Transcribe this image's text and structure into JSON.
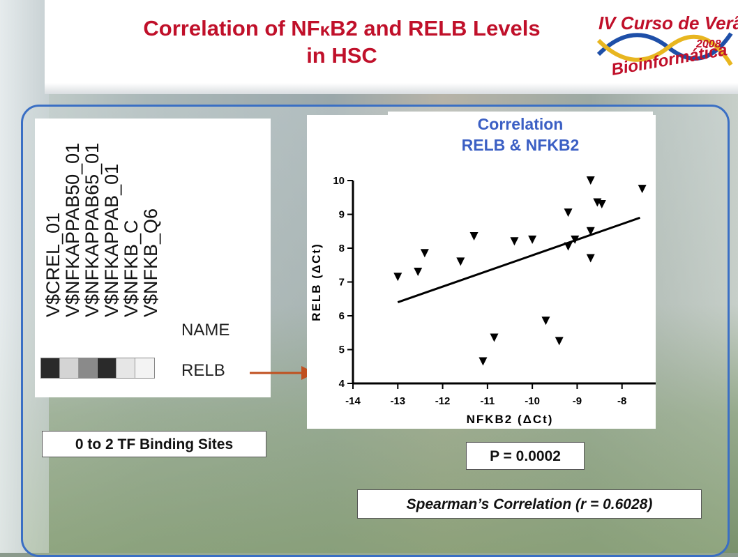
{
  "slide": {
    "title_part1": "Correlation of NF",
    "title_kappa": "κ",
    "title_part2": "B2 and RELB Levels",
    "title_line2": "in HSC",
    "logo_line1": "IV Curso de Verão",
    "logo_year": "2008",
    "logo_line2": "Bioinformática"
  },
  "matrix": {
    "tf_names": [
      "V$CREL_01",
      "V$NFKAPPAB50_01",
      "V$NFKAPPAB65_01",
      "V$NFKAPPAB_01",
      "V$NFKB_C",
      "V$NFKB_Q6"
    ],
    "header_label": "NAME",
    "row_label": "RELB",
    "cell_colors": [
      "#2a2a2a",
      "#d4d4d4",
      "#8a8a8a",
      "#2a2a2a",
      "#e6e6e6",
      "#f3f3f3"
    ],
    "legend_text": "0 to 2 TF Binding Sites"
  },
  "stats": {
    "p_value_text": "P = 0.0002",
    "spearman_text": "Spearman’s Correlation (r = 0.6028)"
  },
  "colors": {
    "title_red": "#c0102a",
    "chart_title_blue": "#3b5fc4",
    "panel_border": "#3a6fc4",
    "arrow": "#c0501f"
  },
  "chart_data": {
    "type": "scatter",
    "title_line1": "Correlation",
    "title_line2": "RELB & NFKB2",
    "xlabel": "NFKB2 (ΔCt)",
    "ylabel": "RELB (ΔCt)",
    "xlim": [
      -14,
      -7
    ],
    "ylim": [
      4,
      10
    ],
    "xticks": [
      -14,
      -13,
      -12,
      -11,
      -10,
      -9,
      -8,
      -7
    ],
    "yticks": [
      4,
      5,
      6,
      7,
      8,
      9,
      10
    ],
    "marker": "down-triangle",
    "points": [
      {
        "x": -13.0,
        "y": 7.15
      },
      {
        "x": -12.55,
        "y": 7.3
      },
      {
        "x": -12.4,
        "y": 7.85
      },
      {
        "x": -11.6,
        "y": 7.6
      },
      {
        "x": -11.3,
        "y": 8.35
      },
      {
        "x": -11.1,
        "y": 4.65
      },
      {
        "x": -10.85,
        "y": 5.35
      },
      {
        "x": -10.4,
        "y": 8.2
      },
      {
        "x": -10.0,
        "y": 8.25
      },
      {
        "x": -9.7,
        "y": 5.85
      },
      {
        "x": -9.4,
        "y": 5.25
      },
      {
        "x": -9.2,
        "y": 9.05
      },
      {
        "x": -9.2,
        "y": 8.05
      },
      {
        "x": -9.05,
        "y": 8.25
      },
      {
        "x": -8.7,
        "y": 10.0
      },
      {
        "x": -8.7,
        "y": 8.5
      },
      {
        "x": -8.7,
        "y": 7.7
      },
      {
        "x": -8.55,
        "y": 9.35
      },
      {
        "x": -8.45,
        "y": 9.3
      },
      {
        "x": -7.55,
        "y": 9.75
      }
    ],
    "trendline": {
      "x": [
        -13.0,
        -7.6
      ],
      "y": [
        6.4,
        8.9
      ]
    }
  }
}
